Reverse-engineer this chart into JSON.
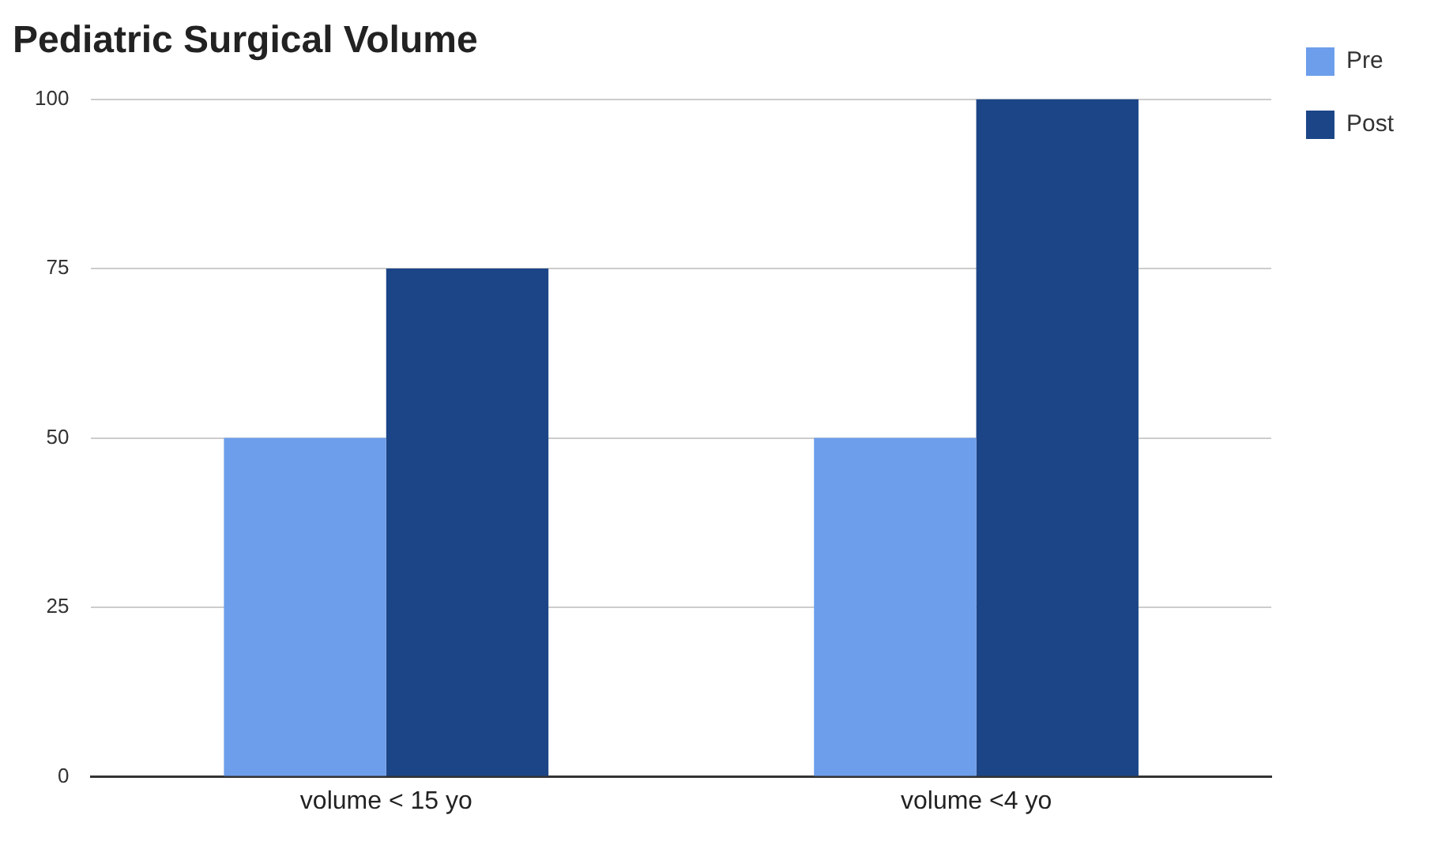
{
  "chart_data": {
    "type": "bar",
    "title": "Pediatric Surgical Volume",
    "categories": [
      "volume < 15 yo",
      "volume <4 yo"
    ],
    "series": [
      {
        "name": "Pre",
        "color": "#6d9eeb",
        "values": [
          50,
          50
        ]
      },
      {
        "name": "Post",
        "color": "#1c4587",
        "values": [
          75,
          100
        ]
      }
    ],
    "ylim": [
      0,
      100
    ],
    "yticks": [
      0,
      25,
      50,
      75,
      100
    ],
    "grid": "y",
    "legend": "right"
  }
}
